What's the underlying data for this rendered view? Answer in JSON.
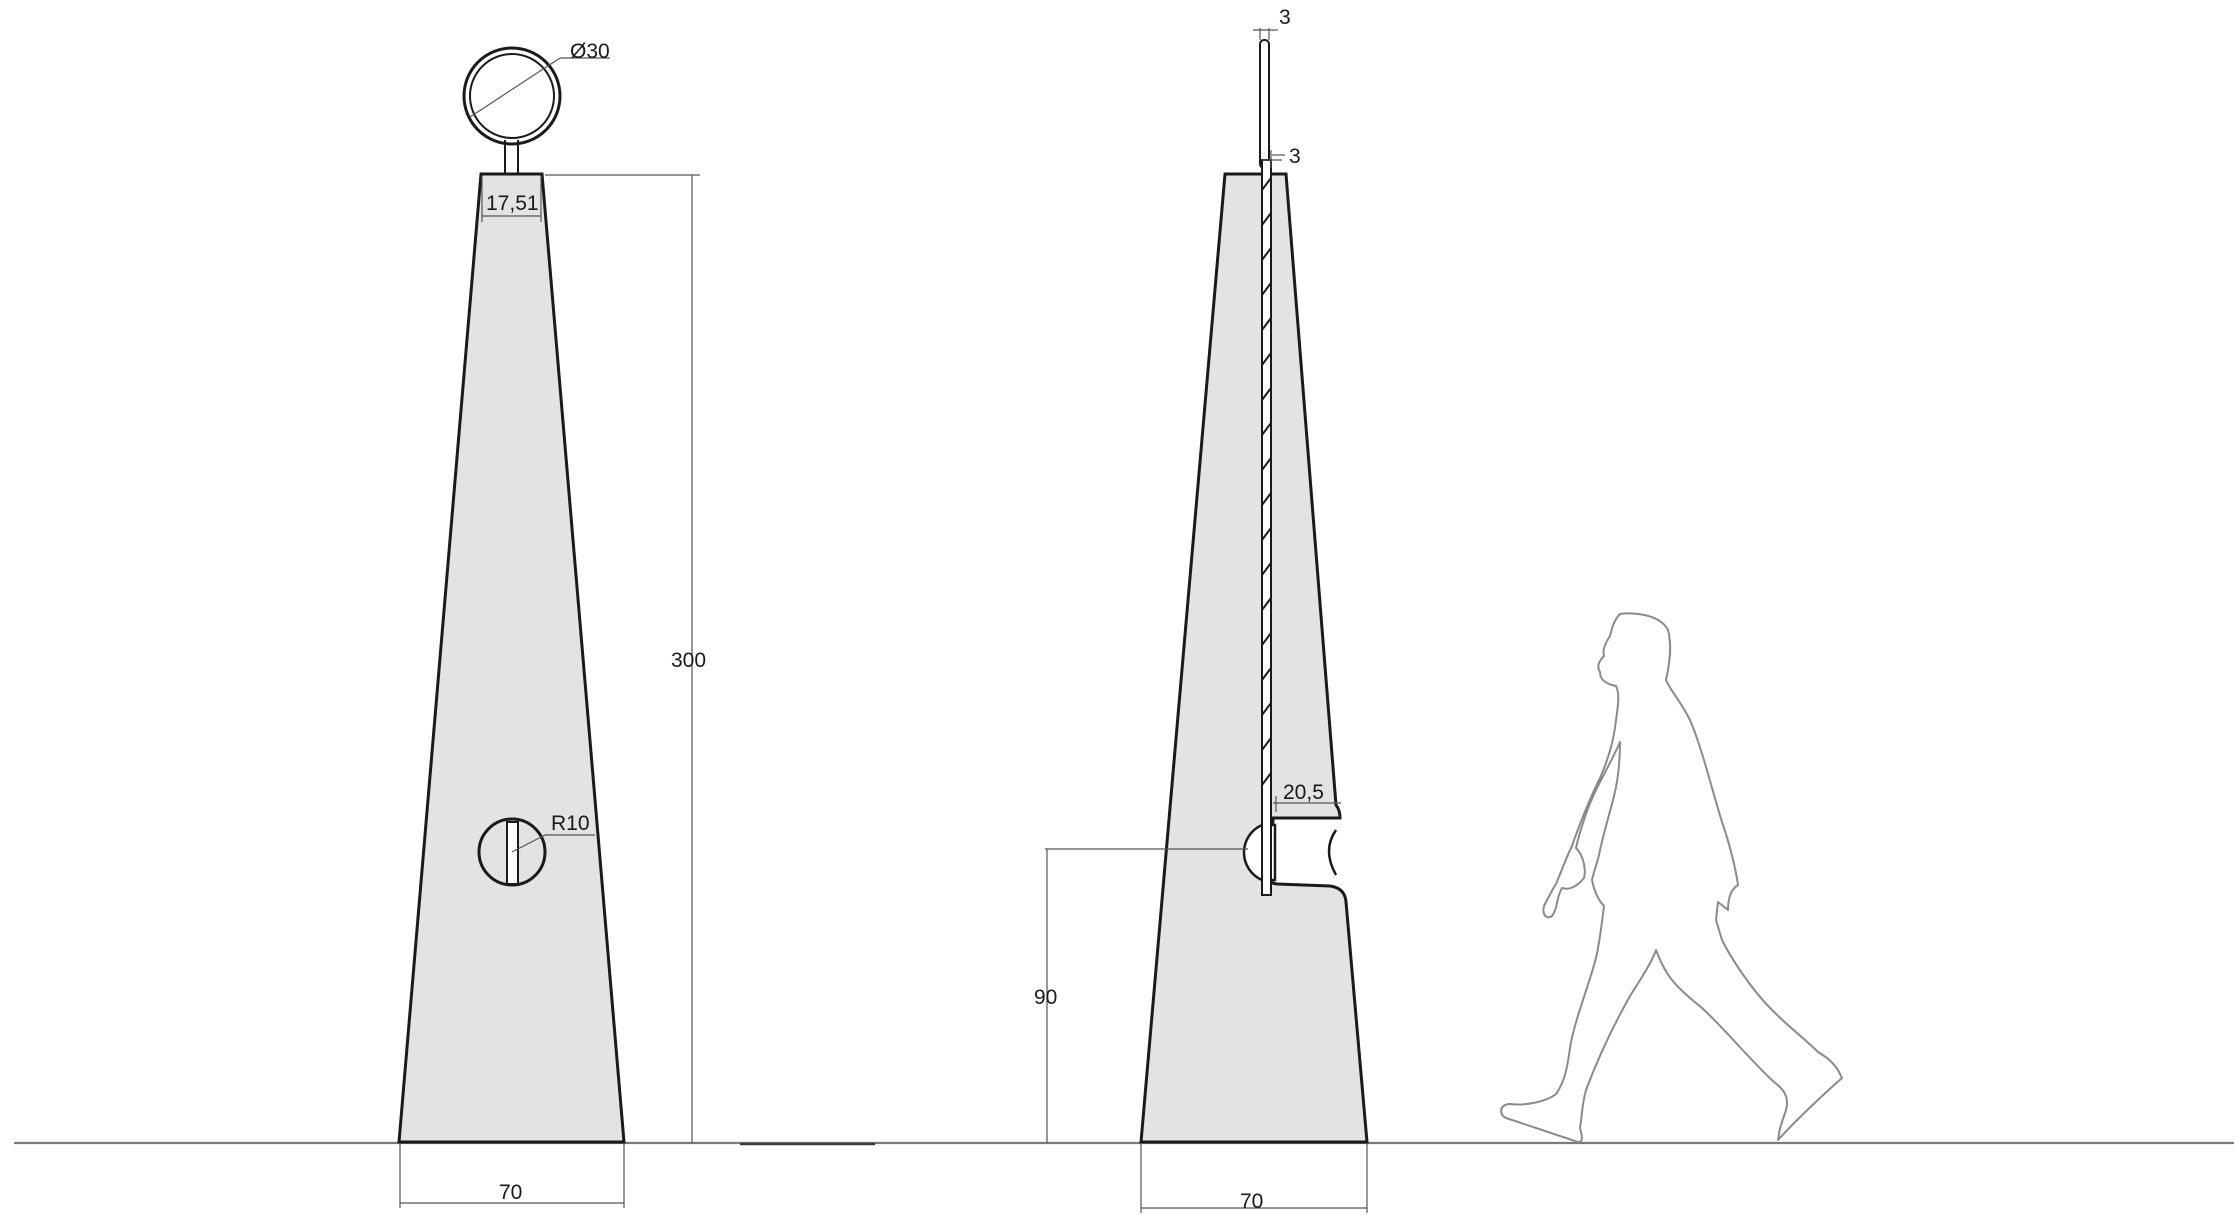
{
  "front_view": {
    "height_label": "300",
    "base_width_label": "70",
    "top_width_label": "17,51",
    "sign_diameter_label": "Ø30",
    "hole_radius_label": "R10"
  },
  "side_view": {
    "base_width_label": "70",
    "rod_top_label": "3",
    "rod_mid_label": "3",
    "notch_depth_label": "20,5",
    "opening_height_label": "90"
  },
  "colors": {
    "body_fill": "#e3e3e3",
    "outline": "#1a1a1a",
    "person_outline": "#8a8a8a"
  }
}
